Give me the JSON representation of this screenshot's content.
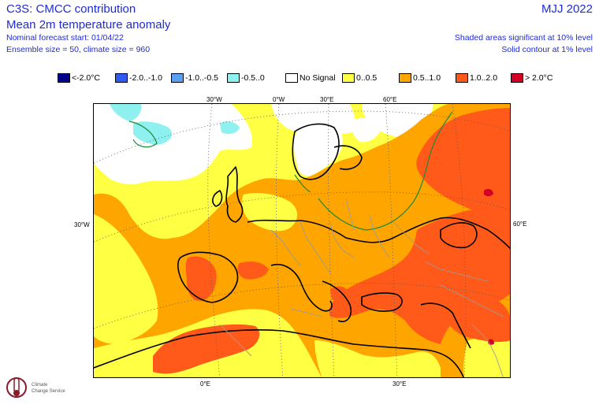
{
  "header": {
    "title_main": "C3S: CMCC contribution",
    "title_sub": "Mean 2m temperature anomaly",
    "forecast_start": "Nominal forecast start: 01/04/22",
    "ensemble": "Ensemble size = 50, climate size = 960",
    "season": "MJJ 2022",
    "shaded_note": "Shaded areas significant at 10% level",
    "solid_note": "Solid contour at 1% level"
  },
  "legend": [
    {
      "label": "<-2.0°C",
      "color": "#00008b"
    },
    {
      "label": "-2.0..-1.0",
      "color": "#2f5bf0"
    },
    {
      "label": "-1.0..-0.5",
      "color": "#5aa0f0"
    },
    {
      "label": "-0.5..0",
      "color": "#8ff0f0"
    },
    {
      "label": "No Signal",
      "color": "#ffffff"
    },
    {
      "label": "0..0.5",
      "color": "#ffff44"
    },
    {
      "label": "0.5..1.0",
      "color": "#ffa500"
    },
    {
      "label": "1.0..2.0",
      "color": "#ff5a1a"
    },
    {
      "label": "> 2.0°C",
      "color": "#d40022"
    }
  ],
  "ticks": {
    "top": [
      "30°W",
      "0°W",
      "30°E",
      "60°E"
    ],
    "left": "30°W",
    "right": "60°E",
    "bottom": [
      "0°E",
      "30°E"
    ]
  },
  "logo_text": [
    "Climate",
    "Change Service"
  ],
  "colors": {
    "header_text": "#1f2bd6",
    "contour": "#1a8a3a",
    "coast": "#000000",
    "borders": "#9a9a9a",
    "grid": "#555555"
  }
}
